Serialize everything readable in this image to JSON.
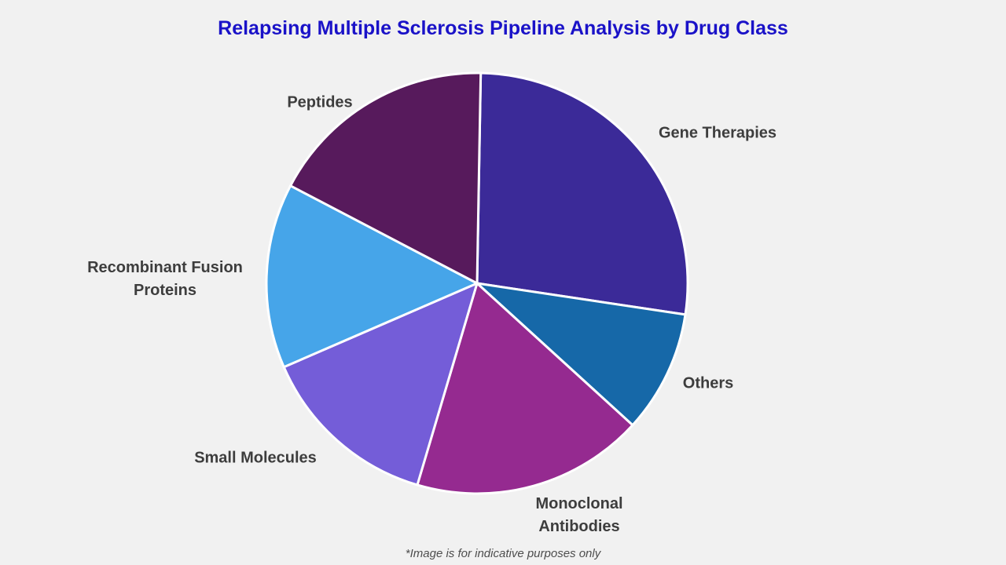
{
  "page": {
    "background": "#f1f1f1",
    "footnote": "*Image is for indicative purposes only"
  },
  "chart_data": {
    "type": "pie",
    "title": "Relapsing Multiple Sclerosis Pipeline Analysis by Drug Class",
    "title_color": "#1a12c8",
    "unit": "percent_share",
    "direction": "clockwise",
    "start_angle_deg": 1,
    "legend": "none",
    "labels_position": "outside",
    "slices": [
      {
        "label": "Gene Therapies",
        "value": 27.1,
        "color": "#3b2a98"
      },
      {
        "label": "Others",
        "value": 9.4,
        "color": "#1668a8"
      },
      {
        "label": "Monoclonal Antibodies",
        "value": 17.8,
        "color": "#952a90"
      },
      {
        "label": "Small Molecules",
        "value": 13.9,
        "color": "#745dd8"
      },
      {
        "label": "Recombinant Fusion Proteins",
        "value": 14.2,
        "color": "#46a5e9"
      },
      {
        "label": "Peptides",
        "value": 17.6,
        "color": "#571a5c"
      }
    ]
  }
}
